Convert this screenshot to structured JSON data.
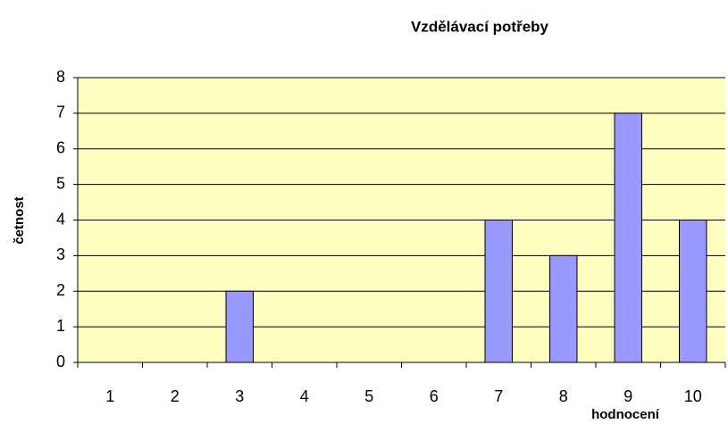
{
  "chart_data": {
    "type": "bar",
    "title": "Vzdělávací potřeby",
    "x_label": "hodnocení",
    "y_label": "četnost",
    "categories": [
      "1",
      "2",
      "3",
      "4",
      "5",
      "6",
      "7",
      "8",
      "9",
      "10"
    ],
    "values": [
      0,
      0,
      2,
      0,
      0,
      0,
      4,
      3,
      7,
      4
    ],
    "color": "#9999ff",
    "background": "#ffffc0",
    "ylim": [
      0,
      8
    ],
    "yticks": [
      0,
      1,
      2,
      3,
      4,
      5,
      6,
      7,
      8
    ],
    "grid": true
  }
}
